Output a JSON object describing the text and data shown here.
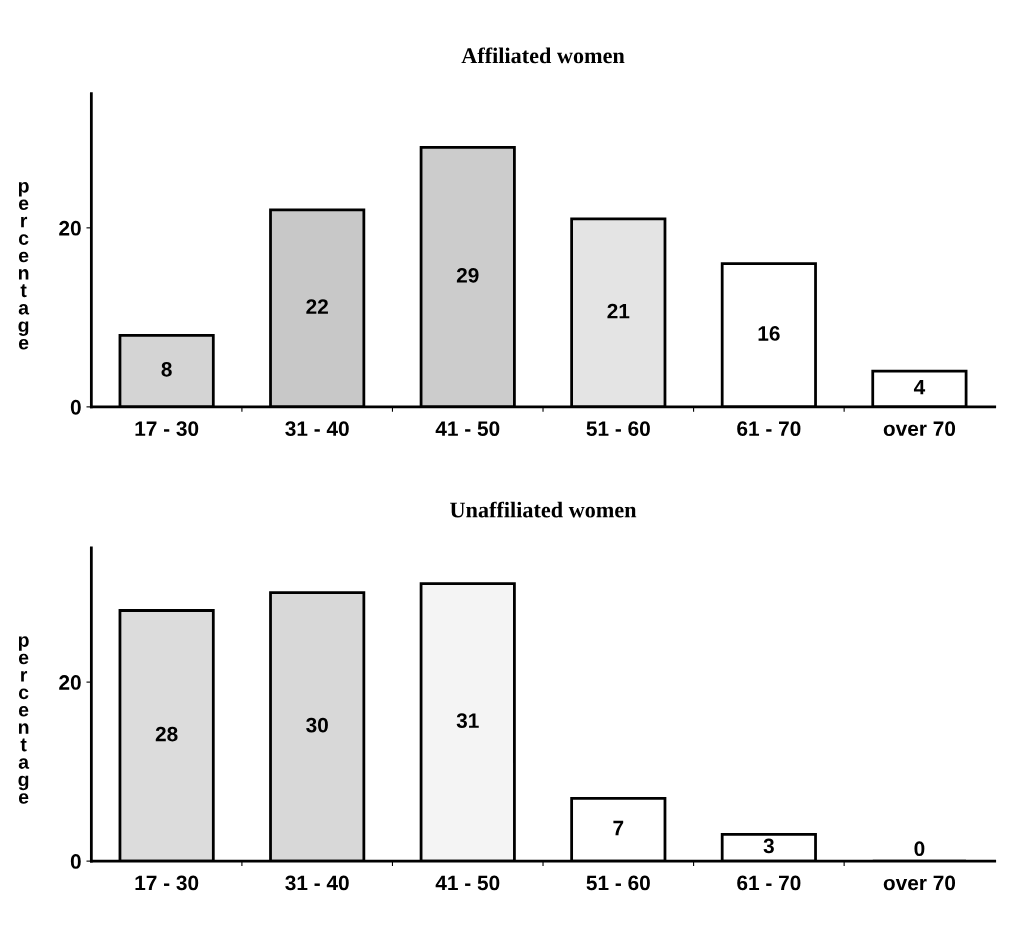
{
  "chart_data": [
    {
      "type": "bar",
      "title": "Affiliated women",
      "ylabel": "percentage",
      "categories": [
        "17 - 30",
        "31 - 40",
        "41 - 50",
        "51 - 60",
        "61 - 70",
        "over 70"
      ],
      "values": [
        8,
        22,
        29,
        21,
        16,
        4
      ],
      "colors": [
        "#d4d4d4",
        "#c8c8c8",
        "#cccccc",
        "#e4e4e4",
        "#ffffff",
        "#ffffff"
      ],
      "ylim": [
        0,
        35
      ],
      "yticks": [
        0,
        20
      ],
      "data_labels": true,
      "grid": false,
      "legend": false
    },
    {
      "type": "bar",
      "title": "Unaffiliated women",
      "ylabel": "percentage",
      "categories": [
        "17 - 30",
        "31 - 40",
        "41 - 50",
        "51 - 60",
        "61 - 70",
        "over 70"
      ],
      "values": [
        28,
        30,
        31,
        7,
        3,
        0
      ],
      "colors": [
        "#dcdcdc",
        "#d8d8d8",
        "#f4f4f4",
        "#ffffff",
        "#ffffff",
        "#ffffff"
      ],
      "ylim": [
        0,
        35
      ],
      "yticks": [
        0,
        20
      ],
      "data_labels": true,
      "grid": false,
      "legend": false
    }
  ]
}
